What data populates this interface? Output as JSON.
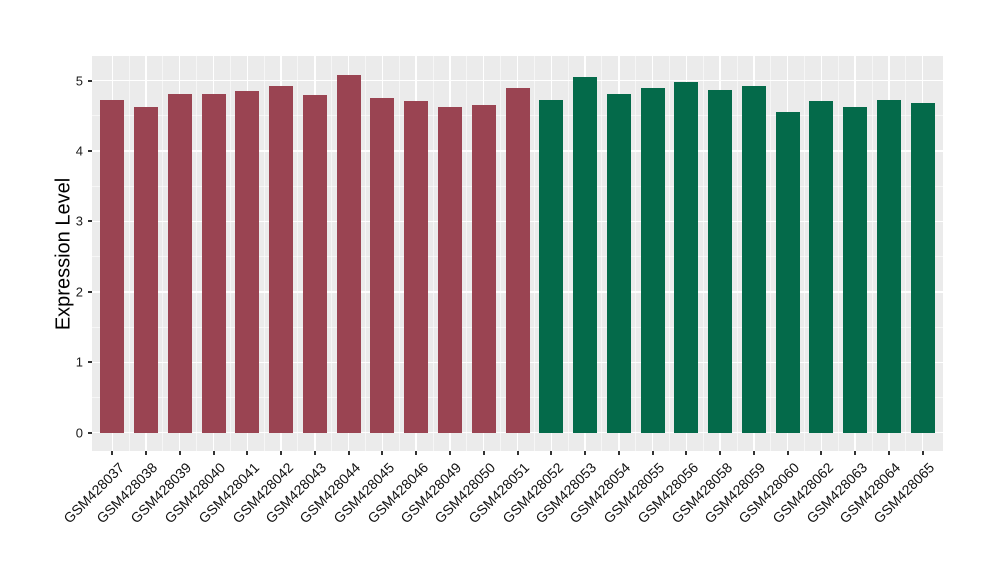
{
  "figure": {
    "background": "#FFFFFF",
    "panel_background": "#EBEBEB",
    "grid_color": "#FFFFFF",
    "axis_text_color": "#1A1A1A",
    "tick_mark_color": "#333333"
  },
  "chart_data": {
    "type": "bar",
    "title": "",
    "xlabel": "",
    "ylabel": "Expression Level",
    "categories": [
      "GSM428037",
      "GSM428038",
      "GSM428039",
      "GSM428040",
      "GSM428041",
      "GSM428042",
      "GSM428043",
      "GSM428044",
      "GSM428045",
      "GSM428046",
      "GSM428049",
      "GSM428050",
      "GSM428051",
      "GSM428052",
      "GSM428053",
      "GSM428054",
      "GSM428055",
      "GSM428056",
      "GSM428058",
      "GSM428059",
      "GSM428060",
      "GSM428062",
      "GSM428063",
      "GSM428064",
      "GSM428065"
    ],
    "values": [
      4.73,
      4.62,
      4.81,
      4.81,
      4.85,
      4.93,
      4.79,
      5.08,
      4.76,
      4.71,
      4.62,
      4.65,
      4.89,
      4.72,
      5.05,
      4.81,
      4.89,
      4.98,
      4.87,
      4.93,
      4.56,
      4.71,
      4.62,
      4.73,
      4.68
    ],
    "bar_groups": [
      0,
      0,
      0,
      0,
      0,
      0,
      0,
      0,
      0,
      0,
      0,
      0,
      0,
      1,
      1,
      1,
      1,
      1,
      1,
      1,
      1,
      1,
      1,
      1,
      1
    ],
    "group_colors": [
      "#9A4452",
      "#046A4A"
    ],
    "yticks": [
      0,
      1,
      2,
      3,
      4,
      5
    ],
    "minor_yticks": [
      0.5,
      1.5,
      2.5,
      3.5,
      4.5
    ],
    "ylim": [
      -0.26,
      5.35
    ],
    "grid": true,
    "legend": "none"
  }
}
